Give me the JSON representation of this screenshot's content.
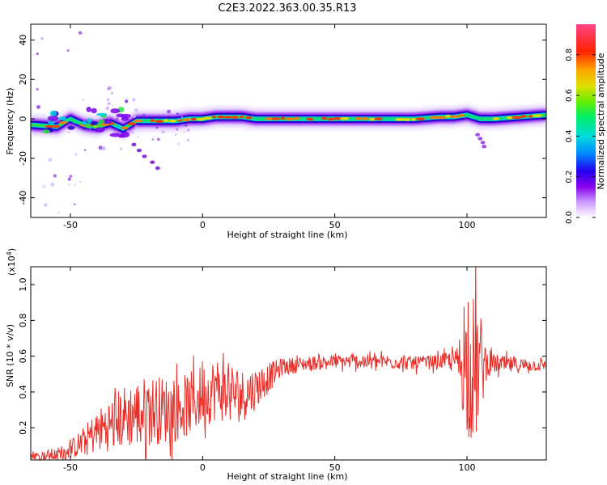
{
  "title": "C2E3.2022.363.00.35.R13",
  "chart_data": [
    {
      "type": "heatmap",
      "xlabel": "Height of straight line (km)",
      "ylabel": "Frequency (Hz)",
      "xlim": [
        -65,
        130
      ],
      "ylim": [
        -50,
        48
      ],
      "xticks": [
        -50,
        0,
        50,
        100
      ],
      "xtick_labels": [
        "-50",
        "0",
        "50",
        "100"
      ],
      "yticks": [
        -40,
        -20,
        0,
        20,
        40
      ],
      "ytick_labels": [
        "-40",
        "-20",
        "0",
        "20",
        "40"
      ],
      "colorbar": {
        "label": "Normalized spectral amplitude",
        "range": [
          0,
          0.95
        ],
        "ticks": [
          0.0,
          0.2,
          0.4,
          0.6,
          0.8
        ],
        "tick_labels": [
          "0.0",
          "0.2",
          "0.4",
          "0.6",
          "0.8"
        ]
      },
      "band_centerline": {
        "x": [
          -65,
          -55,
          -50,
          -45,
          -40,
          -35,
          -30,
          -25,
          -20,
          -15,
          -10,
          -5,
          0,
          5,
          10,
          15,
          20,
          30,
          40,
          50,
          60,
          70,
          80,
          90,
          95,
          100,
          105,
          110,
          120,
          130
        ],
        "y": [
          -3,
          -4,
          0,
          -3,
          -4,
          -2,
          -5,
          -1,
          -1,
          -1,
          -1,
          0,
          0,
          1,
          1,
          1,
          0,
          0,
          0,
          0,
          0,
          0,
          0,
          1,
          1,
          2,
          0,
          0,
          1,
          2
        ]
      }
    },
    {
      "type": "line",
      "xlabel": "Height of straight line (km)",
      "ylabel": "SNR (10 * v/v)",
      "scale_label": "(x10",
      "scale_exp": "4",
      "scale_close": ")",
      "xlim": [
        -65,
        130
      ],
      "ylim": [
        0.02,
        1.1
      ],
      "xticks": [
        -50,
        0,
        50,
        100
      ],
      "xtick_labels": [
        "-50",
        "0",
        "50",
        "100"
      ],
      "yticks": [
        0.2,
        0.4,
        0.6,
        0.8,
        1.0
      ],
      "ytick_labels": [
        "0.2",
        "0.4",
        "0.6",
        "0.8",
        "1.0"
      ],
      "series_color": "#e8302a",
      "trend": {
        "x": [
          -65,
          -55,
          -50,
          -45,
          -40,
          -35,
          -30,
          -25,
          -20,
          -15,
          -10,
          -5,
          0,
          5,
          10,
          15,
          20,
          25,
          30,
          40,
          50,
          60,
          70,
          80,
          90,
          95,
          98,
          100,
          102,
          105,
          108,
          115,
          130
        ],
        "y": [
          0.04,
          0.05,
          0.08,
          0.12,
          0.18,
          0.22,
          0.26,
          0.28,
          0.3,
          0.3,
          0.3,
          0.33,
          0.38,
          0.42,
          0.4,
          0.38,
          0.42,
          0.48,
          0.54,
          0.56,
          0.57,
          0.57,
          0.57,
          0.56,
          0.57,
          0.58,
          0.56,
          0.54,
          0.52,
          0.55,
          0.56,
          0.55,
          0.55
        ]
      },
      "noise_amplitude": {
        "x": [
          -65,
          -50,
          -40,
          -30,
          -20,
          -10,
          0,
          10,
          20,
          30,
          40,
          90,
          96,
          98,
          100,
          103,
          105,
          108,
          130
        ],
        "a": [
          0.02,
          0.05,
          0.12,
          0.18,
          0.2,
          0.18,
          0.18,
          0.18,
          0.12,
          0.05,
          0.04,
          0.04,
          0.06,
          0.25,
          0.38,
          0.45,
          0.3,
          0.06,
          0.03
        ]
      }
    }
  ]
}
